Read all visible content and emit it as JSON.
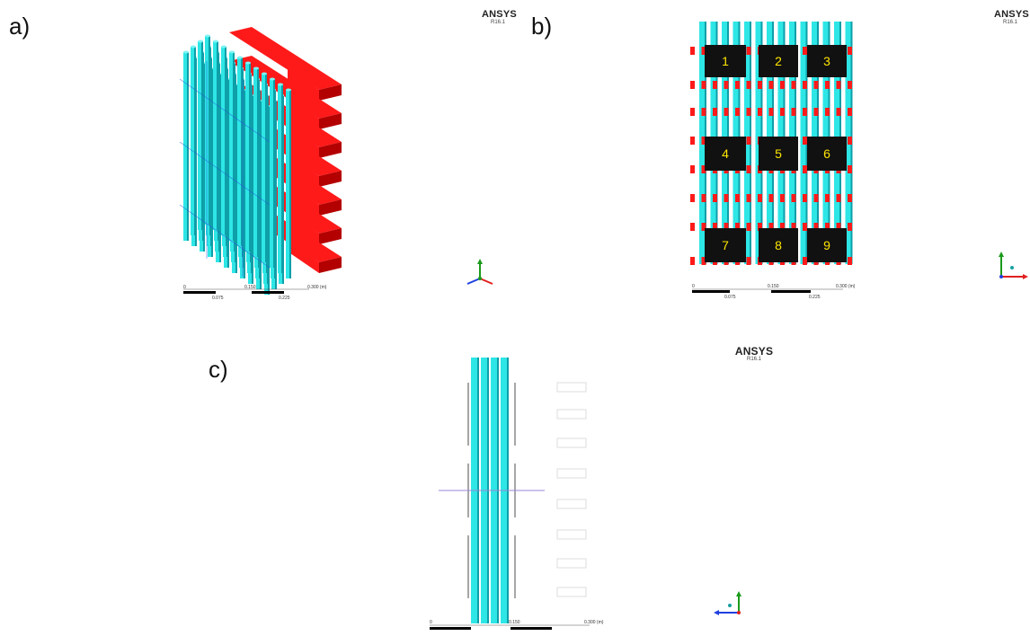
{
  "panels": {
    "a": {
      "label": "a)"
    },
    "b": {
      "label": "b)"
    },
    "c": {
      "label": "c)"
    }
  },
  "brand": {
    "name": "ANSYS",
    "version": "R16.1"
  },
  "scale_bar": {
    "top_ticks": [
      "0",
      "0.150",
      "0.300 (m)"
    ],
    "bottom_ticks": [
      "0.075",
      "0.225"
    ]
  },
  "blocks": [
    {
      "id": "1",
      "label": "1"
    },
    {
      "id": "2",
      "label": "2"
    },
    {
      "id": "3",
      "label": "3"
    },
    {
      "id": "4",
      "label": "4"
    },
    {
      "id": "5",
      "label": "5"
    },
    {
      "id": "6",
      "label": "6"
    },
    {
      "id": "7",
      "label": "7"
    },
    {
      "id": "8",
      "label": "8"
    },
    {
      "id": "9",
      "label": "9"
    }
  ],
  "colors": {
    "tube": "#2ee6e6",
    "tube_dark": "#0e9fa8",
    "duct": "#ff1a1a",
    "duct_dark": "#b30000",
    "block": "#111111",
    "block_label": "#ffe600"
  },
  "triad_icons": [
    "axis-triad-icon"
  ]
}
